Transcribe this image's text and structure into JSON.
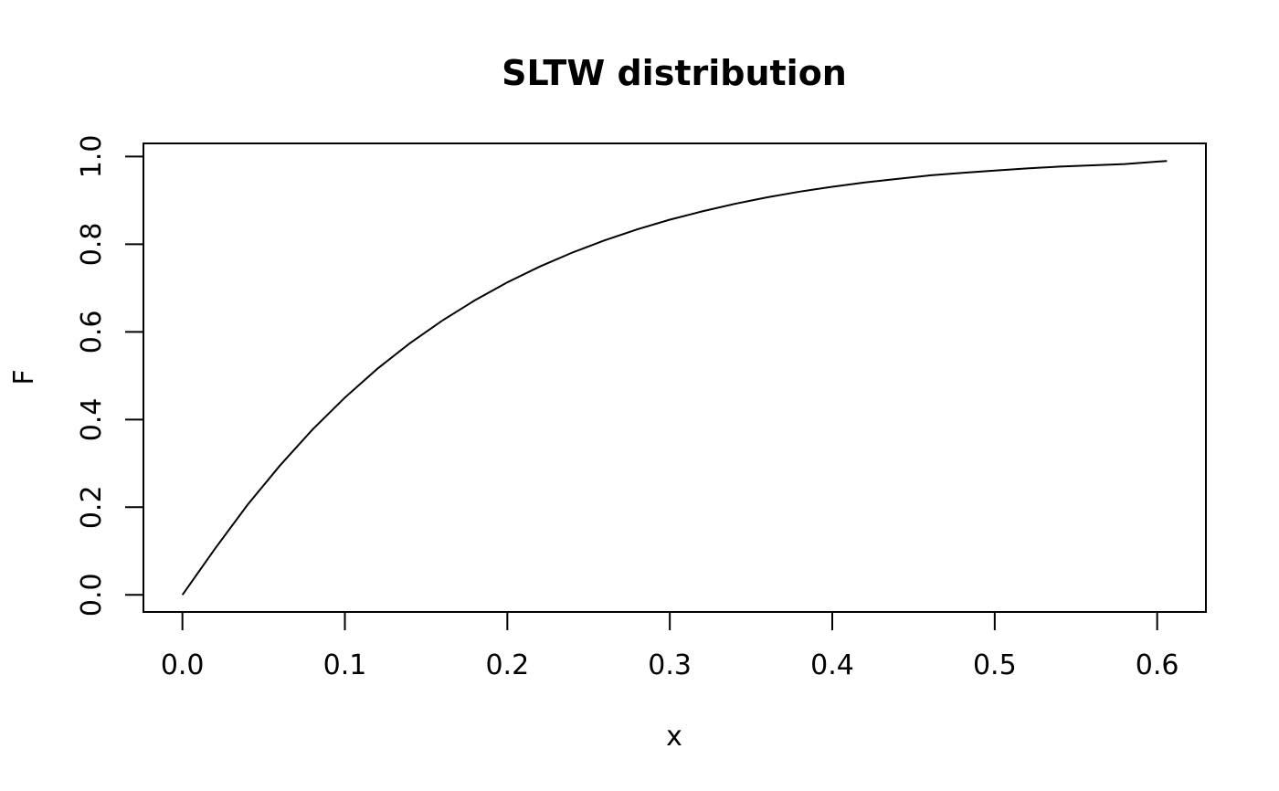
{
  "chart_data": {
    "type": "line",
    "title": "SLTW distribution",
    "xlabel": "x",
    "ylabel": "F",
    "xlim": [
      -0.024,
      0.63
    ],
    "ylim": [
      -0.039,
      1.03
    ],
    "x_ticks": [
      0.0,
      0.1,
      0.2,
      0.3,
      0.4,
      0.5,
      0.6
    ],
    "x_tick_labels": [
      "0.0",
      "0.1",
      "0.2",
      "0.3",
      "0.4",
      "0.5",
      "0.6"
    ],
    "y_ticks": [
      0.0,
      0.2,
      0.4,
      0.6,
      0.8,
      1.0
    ],
    "y_tick_labels": [
      "0.0",
      "0.2",
      "0.4",
      "0.6",
      "0.8",
      "1.0"
    ],
    "grid": false,
    "legend": "none",
    "series": [
      {
        "color": "#000000",
        "x": [
          0.0,
          0.02,
          0.04,
          0.06,
          0.08,
          0.1,
          0.12,
          0.14,
          0.16,
          0.18,
          0.2,
          0.22,
          0.24,
          0.26,
          0.28,
          0.3,
          0.32,
          0.34,
          0.36,
          0.38,
          0.4,
          0.42,
          0.44,
          0.46,
          0.48,
          0.5,
          0.52,
          0.54,
          0.56,
          0.58,
          0.606
        ],
        "y": [
          0.0,
          0.105,
          0.205,
          0.295,
          0.377,
          0.45,
          0.516,
          0.574,
          0.626,
          0.672,
          0.713,
          0.749,
          0.781,
          0.809,
          0.834,
          0.856,
          0.875,
          0.892,
          0.907,
          0.92,
          0.931,
          0.941,
          0.949,
          0.957,
          0.963,
          0.968,
          0.973,
          0.977,
          0.98,
          0.983,
          0.99
        ]
      }
    ]
  }
}
